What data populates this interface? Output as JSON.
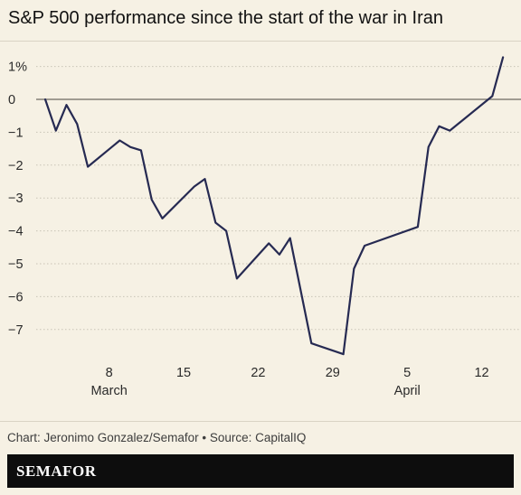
{
  "title": "S&P 500 performance since the start of the war in Iran",
  "source": "Chart: Jeronimo Gonzalez/Semafor • Source: CapitalIQ",
  "brand": "SEMAFOR",
  "colors": {
    "line": "#262a52",
    "background": "#f6f1e4",
    "grid": "#c9c4b6",
    "footer": "#0d0d0d"
  },
  "chart_data": {
    "type": "line",
    "title": "S&P 500 performance since the start of the war in Iran",
    "xlabel": "",
    "ylabel": "",
    "ylim": [
      -8,
      1.5
    ],
    "xlim": [
      "2026-03-02",
      "2026-04-14"
    ],
    "grid": true,
    "legend": "none",
    "y_ticks": [
      {
        "value": 1,
        "label": "1%"
      },
      {
        "value": 0,
        "label": "0"
      },
      {
        "value": -1,
        "label": "−1"
      },
      {
        "value": -2,
        "label": "−2"
      },
      {
        "value": -3,
        "label": "−3"
      },
      {
        "value": -4,
        "label": "−4"
      },
      {
        "value": -5,
        "label": "−5"
      },
      {
        "value": -6,
        "label": "−6"
      },
      {
        "value": -7,
        "label": "−7"
      }
    ],
    "x_ticks": [
      {
        "date": "2026-03-08",
        "label": "8",
        "sublabel": "March"
      },
      {
        "date": "2026-03-15",
        "label": "15",
        "sublabel": ""
      },
      {
        "date": "2026-03-22",
        "label": "22",
        "sublabel": ""
      },
      {
        "date": "2026-03-29",
        "label": "29",
        "sublabel": ""
      },
      {
        "date": "2026-04-05",
        "label": "5",
        "sublabel": "April"
      },
      {
        "date": "2026-04-12",
        "label": "12",
        "sublabel": ""
      }
    ],
    "series": [
      {
        "points": [
          {
            "x": "2026-03-02",
            "y": 0.0
          },
          {
            "x": "2026-03-03",
            "y": -0.95
          },
          {
            "x": "2026-03-04",
            "y": -0.17
          },
          {
            "x": "2026-03-05",
            "y": -0.75
          },
          {
            "x": "2026-03-06",
            "y": -2.05
          },
          {
            "x": "2026-03-09",
            "y": -1.25
          },
          {
            "x": "2026-03-10",
            "y": -1.45
          },
          {
            "x": "2026-03-11",
            "y": -1.55
          },
          {
            "x": "2026-03-12",
            "y": -3.05
          },
          {
            "x": "2026-03-13",
            "y": -3.62
          },
          {
            "x": "2026-03-16",
            "y": -2.65
          },
          {
            "x": "2026-03-17",
            "y": -2.42
          },
          {
            "x": "2026-03-18",
            "y": -3.75
          },
          {
            "x": "2026-03-19",
            "y": -4.0
          },
          {
            "x": "2026-03-20",
            "y": -5.45
          },
          {
            "x": "2026-03-23",
            "y": -4.38
          },
          {
            "x": "2026-03-24",
            "y": -4.72
          },
          {
            "x": "2026-03-25",
            "y": -4.22
          },
          {
            "x": "2026-03-27",
            "y": -7.42
          },
          {
            "x": "2026-03-30",
            "y": -7.75
          },
          {
            "x": "2026-03-31",
            "y": -5.15
          },
          {
            "x": "2026-04-01",
            "y": -4.45
          },
          {
            "x": "2026-04-06",
            "y": -3.88
          },
          {
            "x": "2026-04-07",
            "y": -1.45
          },
          {
            "x": "2026-04-08",
            "y": -0.82
          },
          {
            "x": "2026-04-09",
            "y": -0.95
          },
          {
            "x": "2026-04-13",
            "y": 0.1
          },
          {
            "x": "2026-04-14",
            "y": 1.28
          }
        ]
      }
    ]
  }
}
